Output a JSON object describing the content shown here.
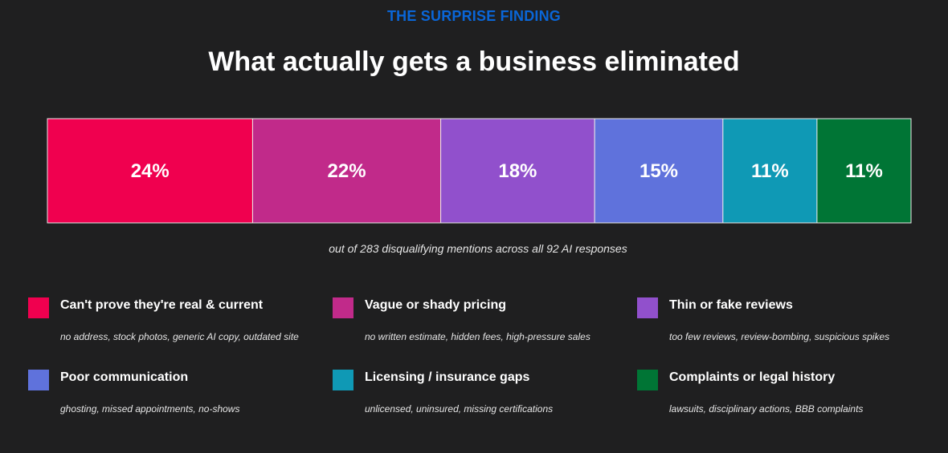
{
  "header": {
    "eyebrow": "THE SURPRISE FINDING",
    "title": "What actually gets a business eliminated",
    "eyebrow_color": "#0a66d8"
  },
  "subtitle": "out of 283 disqualifying mentions across all 92 AI responses",
  "chart_data": {
    "type": "bar",
    "orientation": "horizontal-stacked",
    "title": "What actually gets a business eliminated",
    "total": 100,
    "categories": [
      "Can't prove they're real & current",
      "Vague or shady pricing",
      "Thin or fake reviews",
      "Poor communication",
      "Licensing / insurance gaps",
      "Complaints or legal history"
    ],
    "values": [
      24,
      22,
      18,
      15,
      11,
      11
    ],
    "value_labels": [
      "24%",
      "22%",
      "18%",
      "15%",
      "11%",
      "11%"
    ],
    "colors": [
      "#f0004f",
      "#c12a8a",
      "#9150cc",
      "#5f72dc",
      "#0f99b5",
      "#007535"
    ],
    "legend_position": "bottom"
  },
  "legend": [
    {
      "label": "Can't prove they're real & current",
      "desc": "no address, stock photos, generic AI copy, outdated site"
    },
    {
      "label": "Vague or shady pricing",
      "desc": "no written estimate, hidden fees, high-pressure sales"
    },
    {
      "label": "Thin or fake reviews",
      "desc": "too few reviews, review-bombing, suspicious spikes"
    },
    {
      "label": "Poor communication",
      "desc": "ghosting, missed appointments, no-shows"
    },
    {
      "label": "Licensing / insurance gaps",
      "desc": "unlicensed, uninsured, missing certifications"
    },
    {
      "label": "Complaints or legal history",
      "desc": "lawsuits, disciplinary actions, BBB complaints"
    }
  ]
}
